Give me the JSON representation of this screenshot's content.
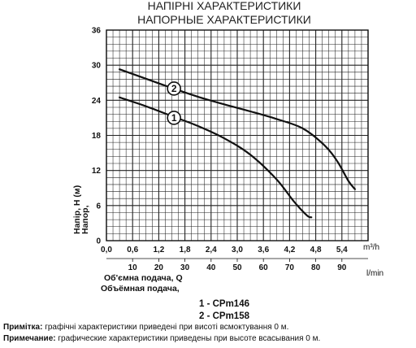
{
  "chart_data": {
    "type": "line",
    "title_lines": [
      "НАПІРНІ ХАРАКТЕРИСТИКИ",
      "НАПОРНЫЕ ХАРАКТЕРИСТИКИ"
    ],
    "ylabel_lines": [
      "Напір, H (м)",
      "Напор,"
    ],
    "xlabel_lines": [
      "Об'ємна подача, Q",
      "Объёмная подача,"
    ],
    "x_unit": "m³/h",
    "x2_unit": "l/min",
    "x_ticks": [
      "0,0",
      "0,6",
      "1,2",
      "1,8",
      "2,4",
      "3,0",
      "3,6",
      "4,2",
      "4,8",
      "5,4"
    ],
    "x2_ticks": [
      "10",
      "20",
      "30",
      "40",
      "50",
      "60",
      "70",
      "80",
      "90"
    ],
    "y_ticks": [
      "0",
      "6",
      "12",
      "18",
      "24",
      "30",
      "36"
    ],
    "xlim": [
      0,
      6.0
    ],
    "ylim": [
      0,
      36
    ],
    "grid": true,
    "series": [
      {
        "name": "1 - CPm146",
        "marker": "1",
        "color": "#111111",
        "x": [
          0.3,
          0.9,
          1.5,
          2.1,
          2.7,
          3.3,
          3.9,
          4.3,
          4.6,
          4.7
        ],
        "y": [
          24.5,
          23.0,
          21.3,
          19.6,
          17.5,
          14.7,
          10.5,
          6.7,
          4.3,
          4.0
        ]
      },
      {
        "name": "2 - CPm158",
        "marker": "2",
        "color": "#111111",
        "x": [
          0.3,
          0.9,
          1.5,
          2.1,
          2.7,
          3.3,
          3.9,
          4.5,
          5.0,
          5.3,
          5.55,
          5.7
        ],
        "y": [
          29.3,
          27.7,
          26.1,
          24.6,
          23.3,
          22.1,
          20.8,
          19.2,
          16.3,
          13.5,
          10.2,
          8.8
        ]
      }
    ],
    "legend": [
      "1 - CPm146",
      "2 - CPm158"
    ]
  },
  "notes": [
    {
      "label": "Примітка:",
      "text": " графічні характеристики приведені при висоті всмоктування 0 м."
    },
    {
      "label": "Примечание:",
      "text": " графические характеристики приведены при высоте всасывания 0 м."
    }
  ]
}
